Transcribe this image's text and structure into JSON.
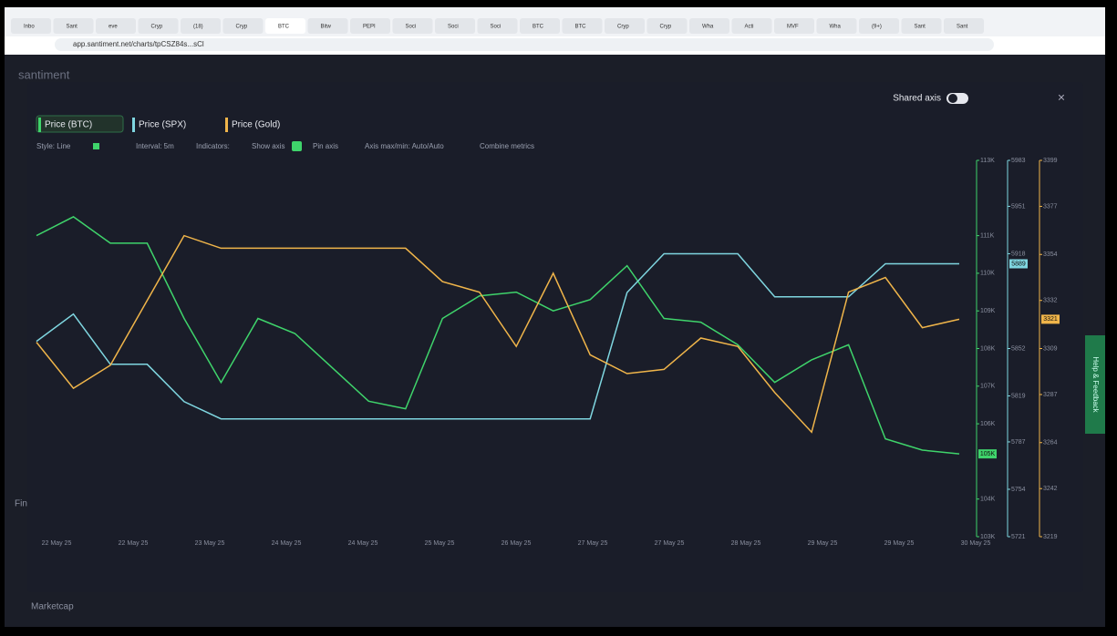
{
  "header": {
    "url": "app.santiment.net/charts/tpCSZ84s...sCl",
    "tabs": [
      "Inbo",
      "Sant",
      "eve",
      "Cryp",
      "(18)",
      "Cryp",
      "BTC",
      "Bitw",
      "PEPI",
      "Soci",
      "Soci",
      "Soci",
      "BTC",
      "BTC",
      "Cryp",
      "Cryp",
      "Wha",
      "Acti",
      "MVF",
      "Wha",
      "(9+)",
      "Sant",
      "Sant"
    ]
  },
  "app": {
    "brand": "santiment",
    "side_label": "Fin",
    "footer_label": "Marketcap",
    "feedback": "Help & Feedback",
    "shared_axis": "Shared axis",
    "toolbar": {
      "style": "Style: Line",
      "interval": "Interval: 5m",
      "indicators": "Indicators:",
      "show_axis": "Show axis",
      "pin_axis": "Pin axis",
      "axis_minmax": "Axis max/min: Auto/Auto",
      "combine": "Combine metrics"
    }
  },
  "chart_data": {
    "type": "line",
    "grid": false,
    "xticks": [
      "22 May 25",
      "22 May 25",
      "23 May 25",
      "24 May 25",
      "24 May 25",
      "25 May 25",
      "26 May 25",
      "27 May 25",
      "27 May 25",
      "28 May 25",
      "29 May 25",
      "29 May 25",
      "30 May 25"
    ],
    "ylim": [
      103000,
      113000
    ],
    "yticks": [
      {
        "value": 103000,
        "label": "103K"
      },
      {
        "value": 104000,
        "label": "104K"
      },
      {
        "value": 106000,
        "label": "106K"
      },
      {
        "value": 107000,
        "label": "107K"
      },
      {
        "value": 108000,
        "label": "108K"
      },
      {
        "value": 109000,
        "label": "109K"
      },
      {
        "value": 110000,
        "label": "110K"
      },
      {
        "value": 111000,
        "label": "111K"
      },
      {
        "value": 113000,
        "label": "113K"
      }
    ],
    "y2lim": [
      5721,
      5983
    ],
    "y2ticks": [
      5721,
      5754,
      5787,
      5819,
      5852,
      5918,
      5951,
      5983
    ],
    "y3lim": [
      3219,
      3399
    ],
    "y3ticks": [
      3219,
      3242,
      3264,
      3287,
      3309,
      3332,
      3354,
      3377,
      3399
    ],
    "series": [
      {
        "name": "Price (BTC)",
        "color": "#3fd46b",
        "badge": "105K",
        "values": [
          111000,
          111500,
          110800,
          110800,
          108800,
          107100,
          108800,
          108400,
          107500,
          106600,
          106400,
          108800,
          109400,
          109500,
          109000,
          109300,
          110200,
          108800,
          108700,
          108100,
          107100,
          107700,
          108100,
          105600,
          105300,
          105200
        ]
      },
      {
        "name": "Price (SPX)",
        "color": "#7fd6e0",
        "axis": "y2",
        "badge": "5889",
        "values": [
          5857,
          5876,
          5841,
          5841,
          5815,
          5803,
          5803,
          5803,
          5803,
          5803,
          5803,
          5803,
          5803,
          5803,
          5803,
          5803,
          5891,
          5918,
          5918,
          5918,
          5888,
          5888,
          5888,
          5911,
          5911,
          5911
        ]
      },
      {
        "name": "Price (Gold)",
        "color": "#f0b54a",
        "axis": "y3",
        "badge": "3321",
        "values": [
          3312,
          3290,
          3301,
          3332,
          3363,
          3357,
          3357,
          3357,
          3357,
          3357,
          3357,
          3341,
          3336,
          3310,
          3345,
          3306,
          3297,
          3299,
          3314,
          3310,
          3288,
          3269,
          3336,
          3343,
          3319,
          3323
        ]
      }
    ]
  }
}
